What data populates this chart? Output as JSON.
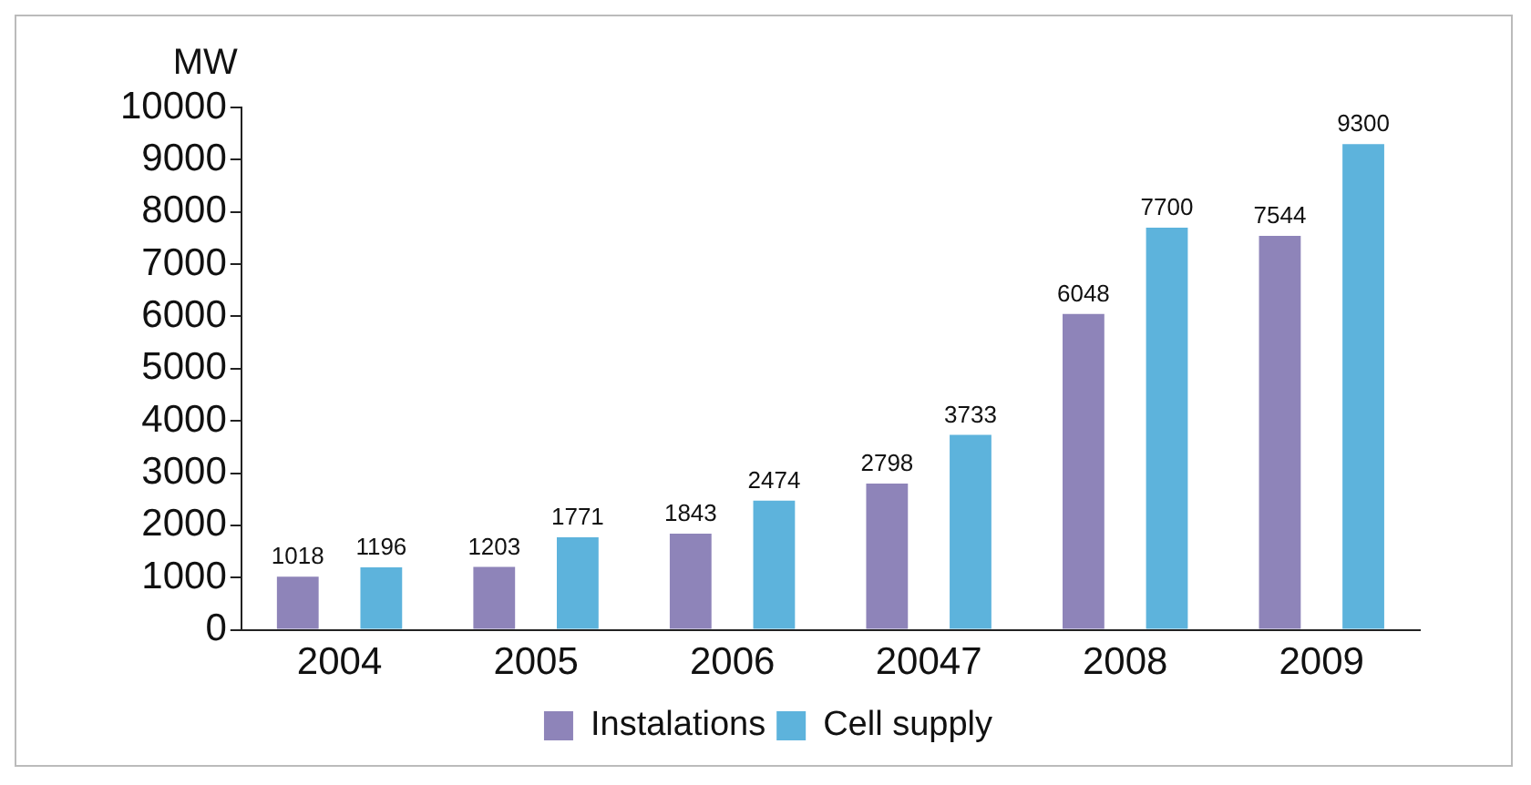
{
  "chart_data": {
    "type": "bar",
    "ylabel": "MW",
    "categories": [
      "2004",
      "2005",
      "2006",
      "20047",
      "2008",
      "2009"
    ],
    "series": [
      {
        "name": "Instalations",
        "color": "#8e84b9",
        "values": [
          1018,
          1203,
          1843,
          2798,
          6048,
          7544
        ]
      },
      {
        "name": "Cell supply",
        "color": "#5db3dc",
        "values": [
          1196,
          1771,
          2474,
          3733,
          7700,
          9300
        ]
      }
    ],
    "ylim": [
      0,
      10000
    ],
    "yticks": [
      0,
      1000,
      2000,
      3000,
      4000,
      5000,
      6000,
      7000,
      8000,
      9000,
      10000
    ],
    "data_labels": true,
    "grid": false,
    "legend": "bottom"
  }
}
